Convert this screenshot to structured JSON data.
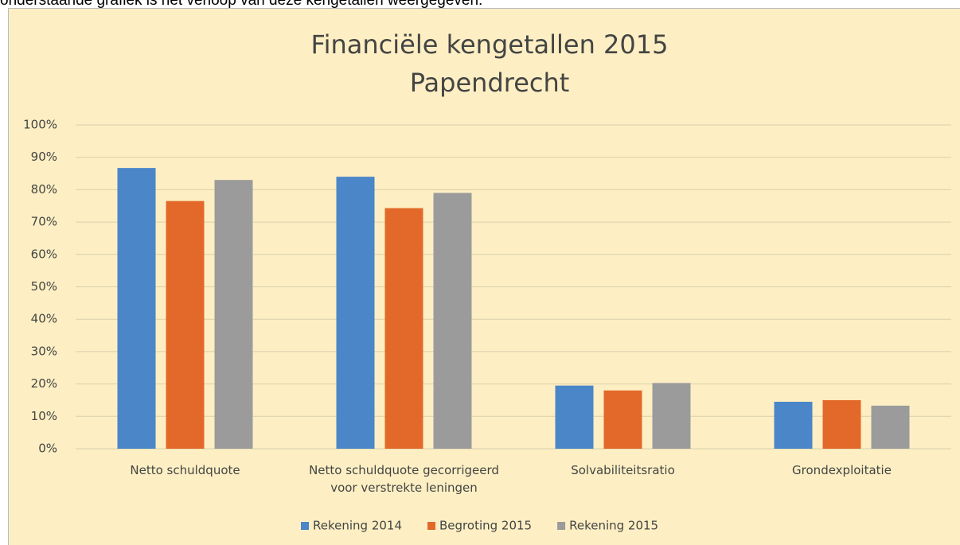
{
  "caption": "onderstaande grafiek is het verloop van deze kengetallen weergegeven.",
  "chart_data": {
    "type": "bar",
    "title": "Financiële kengetallen 2015",
    "subtitle": "Papendrecht",
    "categories": [
      "Netto schuldquote",
      "Netto schuldquote gecorrigeerd voor verstrekte leningen",
      "Solvabiliteitsratio",
      "Grondexploitatie"
    ],
    "series": [
      {
        "name": "Rekening 2014",
        "color": "#4a86c8",
        "values": [
          86.7,
          84,
          19.5,
          14.5
        ]
      },
      {
        "name": "Begroting 2015",
        "color": "#e2692a",
        "values": [
          76.5,
          74.3,
          18,
          15
        ]
      },
      {
        "name": "Rekening 2015",
        "color": "#9b9b9b",
        "values": [
          83,
          79,
          20.3,
          13.3
        ]
      }
    ],
    "ylim": [
      0,
      100
    ],
    "yticks": [
      {
        "value": 0,
        "label": "0%"
      },
      {
        "value": 10,
        "label": "10%"
      },
      {
        "value": 20,
        "label": "20%"
      },
      {
        "value": 30,
        "label": "30%"
      },
      {
        "value": 40,
        "label": "40%"
      },
      {
        "value": 50,
        "label": "50%"
      },
      {
        "value": 60,
        "label": "60%"
      },
      {
        "value": 70,
        "label": "70%"
      },
      {
        "value": 80,
        "label": "80%"
      },
      {
        "value": 90,
        "label": "90%"
      },
      {
        "value": 100,
        "label": "100%"
      }
    ],
    "grid": true,
    "legend": "bottom"
  }
}
